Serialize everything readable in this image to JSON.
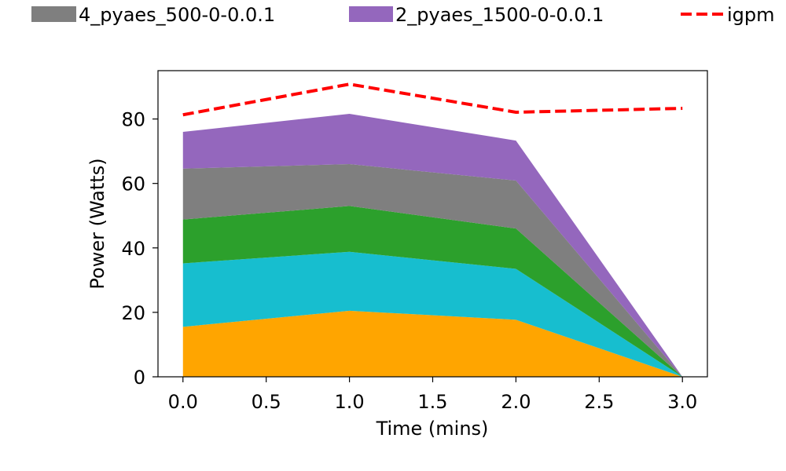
{
  "chart_data": {
    "type": "area",
    "stacked": true,
    "xlabel": "Time (mins)",
    "ylabel": "Power (Watts)",
    "xlim": [
      -0.15,
      3.15
    ],
    "ylim": [
      0,
      95
    ],
    "xticks": [
      0.0,
      0.5,
      1.0,
      1.5,
      2.0,
      2.5,
      3.0
    ],
    "xtick_labels": [
      "0.0",
      "0.5",
      "1.0",
      "1.5",
      "2.0",
      "2.5",
      "3.0"
    ],
    "yticks": [
      0,
      20,
      40,
      60,
      80
    ],
    "ytick_labels": [
      "0",
      "20",
      "40",
      "60",
      "80"
    ],
    "grid": false,
    "legend_placement": "top, outside plot",
    "x": [
      0,
      1,
      2,
      3
    ],
    "series": [
      {
        "color": "#ffa500",
        "values": [
          15.5,
          20.5,
          17.7,
          0
        ]
      },
      {
        "color": "#17becf",
        "values": [
          19.7,
          18.3,
          15.8,
          0
        ]
      },
      {
        "color": "#2ca02c",
        "values": [
          13.6,
          14.2,
          12.5,
          0
        ]
      },
      {
        "name": "4_pyaes_500-0-0.0.1",
        "color": "#7f7f7f",
        "values": [
          15.8,
          13.0,
          14.9,
          0
        ]
      },
      {
        "name": "2_pyaes_1500-0-0.0.1",
        "color": "#9467bd",
        "values": [
          11.4,
          15.6,
          12.4,
          0
        ]
      }
    ],
    "line": {
      "name": "igpm",
      "color": "#ff0000",
      "style": "dashed",
      "values": [
        81.3,
        90.8,
        82.1,
        83.3
      ]
    }
  }
}
